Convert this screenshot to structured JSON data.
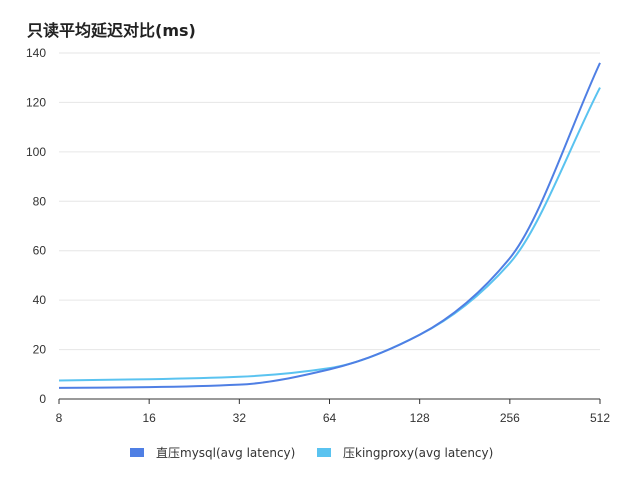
{
  "chart_data": {
    "type": "line",
    "title": "只读平均延迟对比(ms)",
    "xlabel": "",
    "ylabel": "",
    "x_scale": "log2",
    "x": [
      8,
      16,
      32,
      64,
      128,
      256,
      512
    ],
    "x_tick_labels": [
      "8",
      "16",
      "32",
      "64",
      "128",
      "256",
      "512"
    ],
    "ylim": [
      0,
      140
    ],
    "y_ticks": [
      0,
      20,
      40,
      60,
      80,
      100,
      120,
      140
    ],
    "grid": true,
    "legend_position": "bottom",
    "series": [
      {
        "name": "直压mysql(avg latency)",
        "color": "#4f7fe4",
        "values": [
          4.5,
          4.8,
          5.8,
          12,
          26,
          57,
          136
        ]
      },
      {
        "name": "压kingproxy(avg latency)",
        "color": "#5ac3f0",
        "values": [
          7.5,
          8,
          9,
          12.5,
          26,
          55,
          126
        ]
      }
    ]
  }
}
